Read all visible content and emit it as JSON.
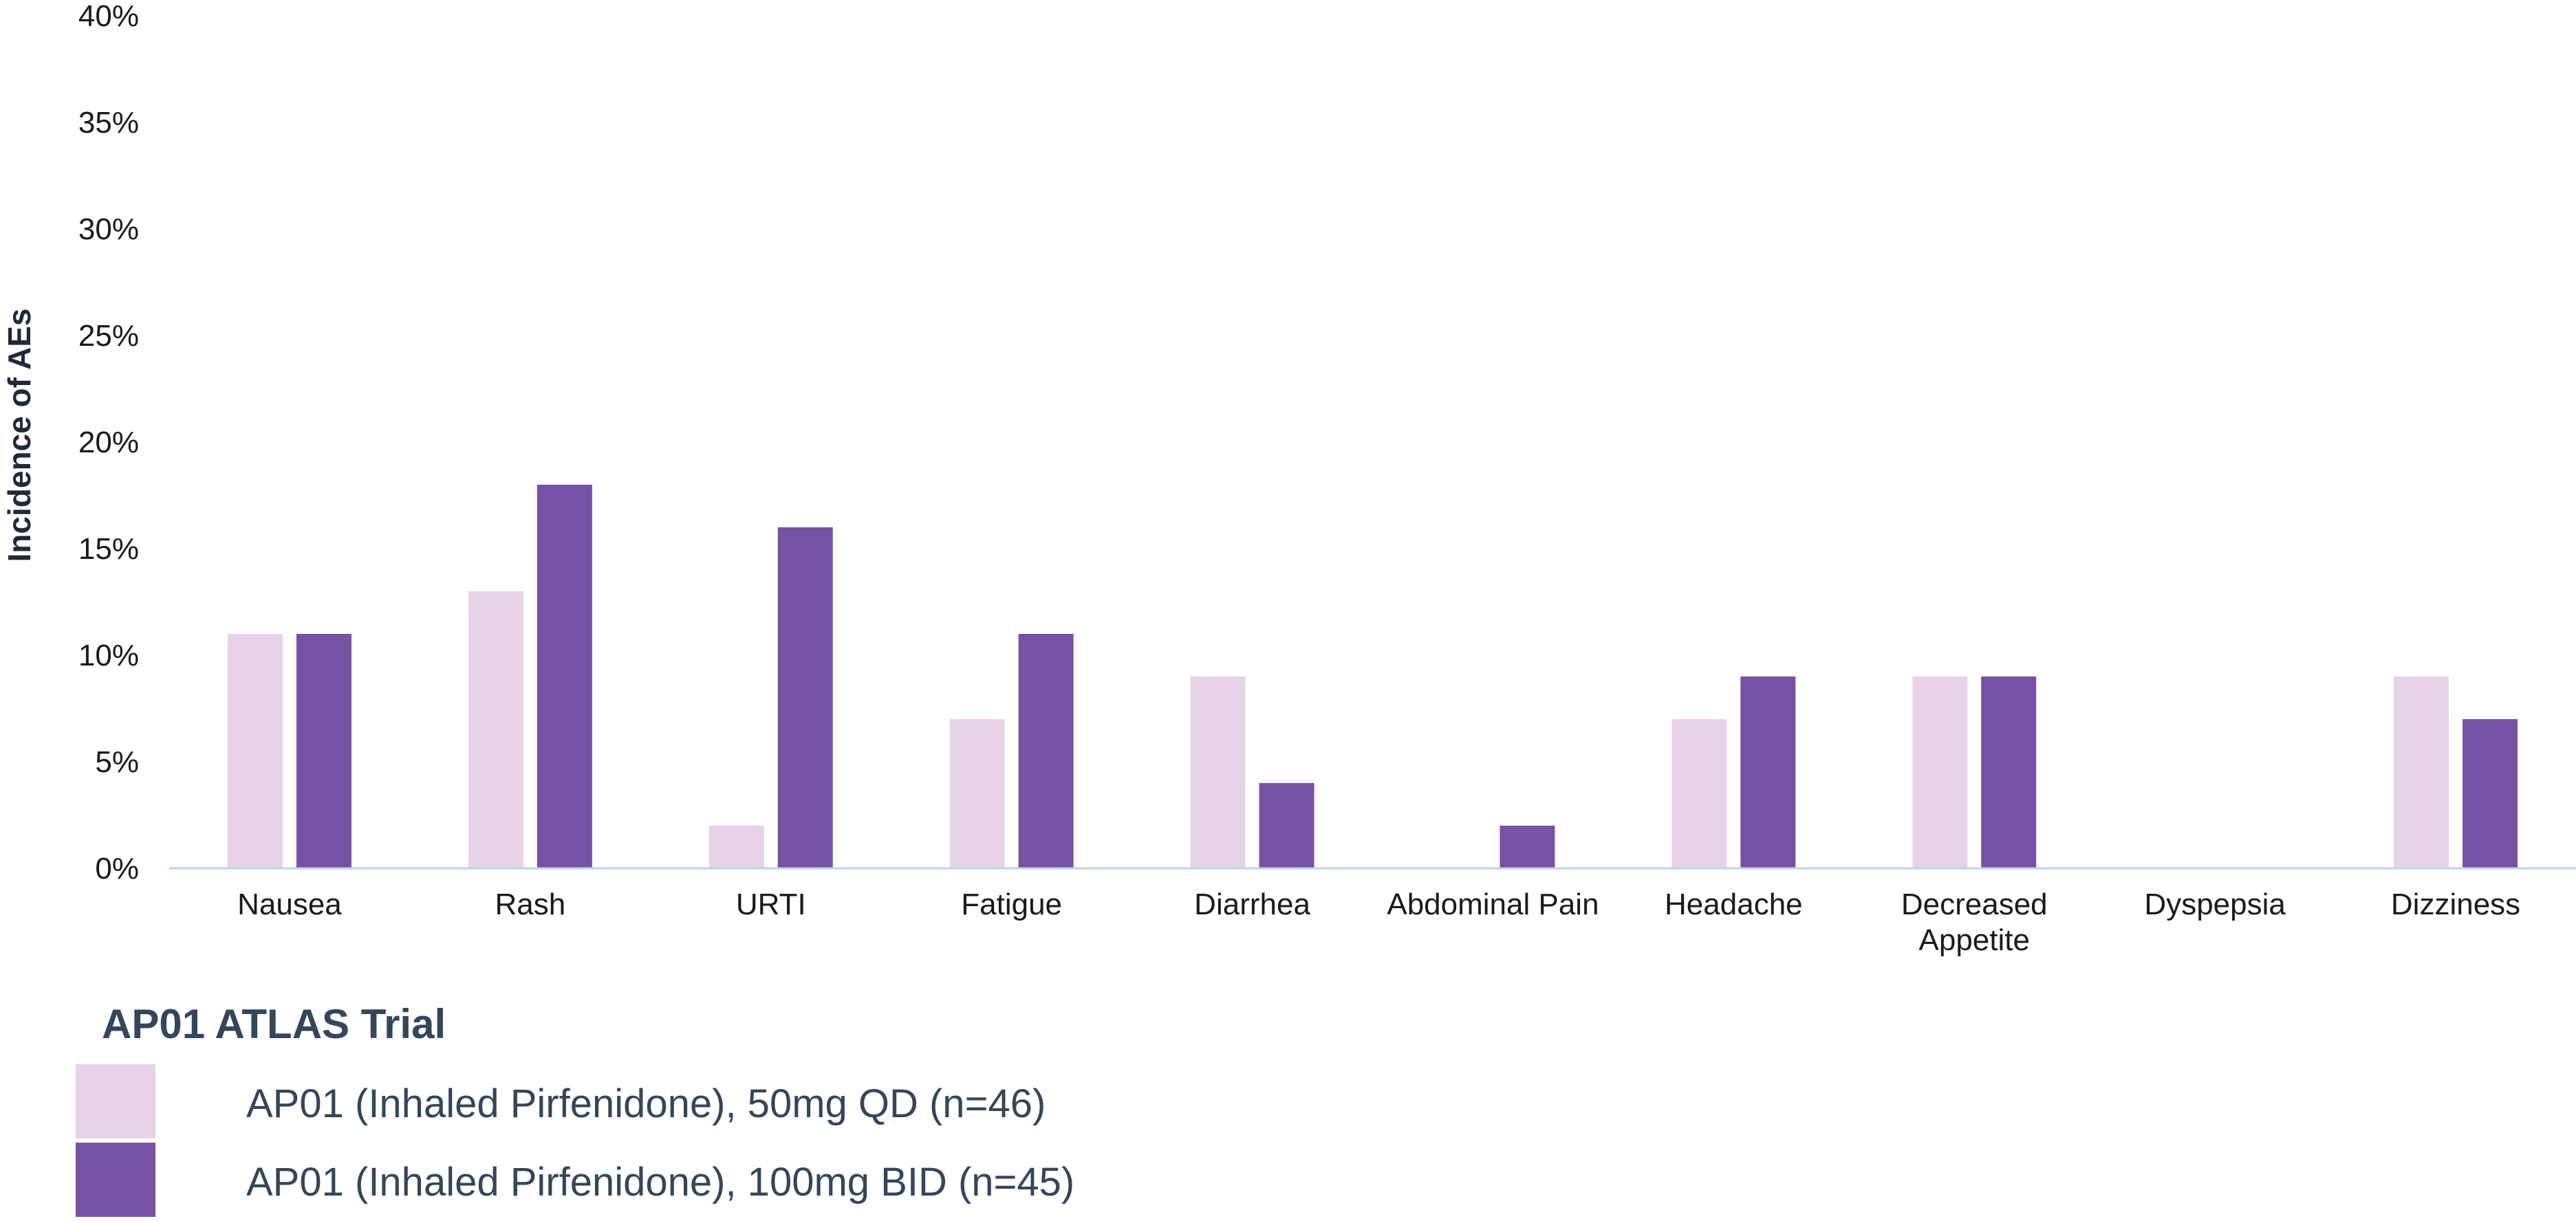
{
  "chart_data": {
    "type": "bar",
    "title": "",
    "xlabel": "",
    "ylabel": "Incidence of AEs",
    "ylim": [
      0,
      40
    ],
    "yticks": [
      "0%",
      "5%",
      "10%",
      "15%",
      "20%",
      "25%",
      "30%",
      "35%",
      "40%"
    ],
    "categories": [
      [
        "Nausea"
      ],
      [
        "Rash"
      ],
      [
        "URTI"
      ],
      [
        "Fatigue"
      ],
      [
        "Diarrhea"
      ],
      [
        "Abdominal Pain"
      ],
      [
        "Headache"
      ],
      [
        "Decreased",
        "Appetite"
      ],
      [
        "Dyspepsia"
      ],
      [
        "Dizziness"
      ]
    ],
    "series": [
      {
        "name": "AP01 (Inhaled Pirfenidone), 50mg QD (n=46)",
        "color": "#e6d3e7",
        "values": [
          11,
          13,
          2,
          7,
          9,
          0,
          7,
          9,
          0,
          9
        ]
      },
      {
        "name": "AP01 (Inhaled Pirfenidone), 100mg BID  (n=45)",
        "color": "#7751a3",
        "values": [
          11,
          18,
          16,
          11,
          4,
          2,
          9,
          9,
          0,
          7
        ]
      }
    ],
    "grid": false,
    "legend_position": "bottom-left",
    "axis_color": "#bcd4ec"
  },
  "legend": {
    "title": "AP01 ATLAS Trial"
  }
}
